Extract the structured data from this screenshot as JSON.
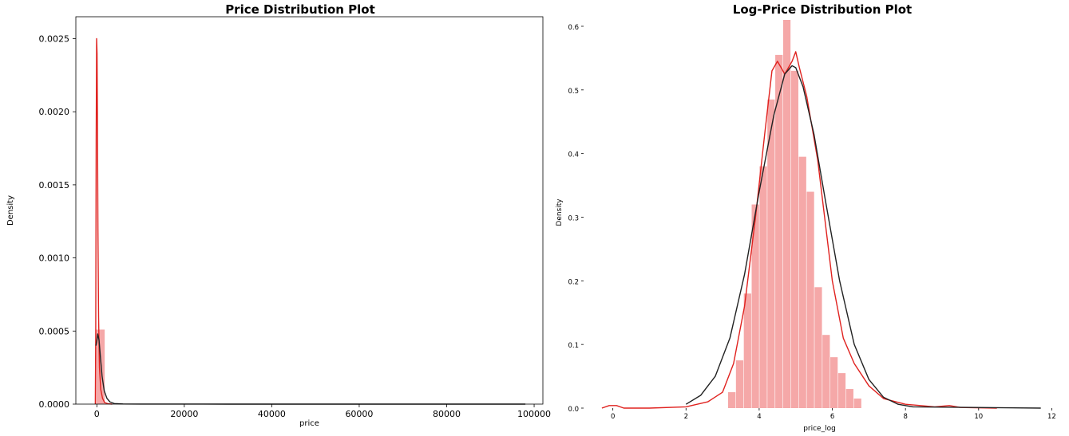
{
  "colors": {
    "bar_fill": "#f4a3a3",
    "kde_line": "#e0221f",
    "fit_line": "#222222",
    "axis": "#000000"
  },
  "chart_data": [
    {
      "type": "histogram",
      "title": "Price Distribution Plot",
      "xlabel": "price",
      "ylabel": "Density",
      "xlim": [
        -4800,
        102000
      ],
      "ylim": [
        0,
        0.00265
      ],
      "xticks": [
        0,
        20000,
        40000,
        60000,
        80000,
        100000
      ],
      "xtick_labels": [
        "0",
        "20000",
        "40000",
        "60000",
        "80000",
        "100000"
      ],
      "yticks": [
        0.0,
        0.0005,
        0.001,
        0.0015,
        0.002,
        0.0025
      ],
      "ytick_labels": [
        "0.0000",
        "0.0005",
        "0.0010",
        "0.0015",
        "0.0020",
        "0.0025"
      ],
      "grid": false,
      "spines": "full box",
      "bins": [
        {
          "x0": -200,
          "x1": 1800,
          "density": 0.00051
        }
      ],
      "kde": {
        "x": [
          -350,
          -250,
          -150,
          -50,
          50,
          150,
          250,
          400,
          600,
          900,
          1300,
          1800,
          2500,
          3500
        ],
        "y": [
          0.0,
          0.0005,
          0.0018,
          0.0025,
          0.0024,
          0.0019,
          0.0012,
          0.0006,
          0.00025,
          0.0001,
          4e-05,
          1e-05,
          3e-06,
          0.0
        ]
      },
      "fit": {
        "x": [
          -200,
          0,
          200,
          500,
          800,
          1200,
          1700,
          2300,
          3000,
          4000,
          6000,
          10000,
          30000,
          98000
        ],
        "y": [
          0.0004,
          0.00043,
          0.00048,
          0.00044,
          0.00033,
          0.00019,
          9e-05,
          4e-05,
          1.5e-05,
          4e-06,
          1e-06,
          3e-07,
          0.0,
          0.0
        ]
      }
    },
    {
      "type": "histogram",
      "title": "Log-Price Distribution Plot",
      "xlabel": "price_log",
      "ylabel": "Density",
      "xlim": [
        -0.8,
        12.1
      ],
      "ylim": [
        0,
        0.615
      ],
      "xticks": [
        0,
        2,
        4,
        6,
        8,
        10,
        12
      ],
      "xtick_labels": [
        "0",
        "2",
        "4",
        "6",
        "8",
        "10",
        "12"
      ],
      "yticks": [
        0.0,
        0.1,
        0.2,
        0.3,
        0.4,
        0.5,
        0.6
      ],
      "ytick_labels": [
        "0.0",
        "0.1",
        "0.2",
        "0.3",
        "0.4",
        "0.5",
        "0.6"
      ],
      "grid": false,
      "spines": "left and bottom",
      "bin_start": 3.15,
      "bin_width": 0.215,
      "bin_densities": [
        0.025,
        0.075,
        0.18,
        0.32,
        0.38,
        0.485,
        0.555,
        0.61,
        0.53,
        0.395,
        0.34,
        0.19,
        0.115,
        0.08,
        0.055,
        0.03,
        0.015
      ],
      "kde": {
        "x": [
          -0.3,
          -0.1,
          0.1,
          0.3,
          1.0,
          2.0,
          2.6,
          3.0,
          3.3,
          3.6,
          3.9,
          4.15,
          4.35,
          4.5,
          4.7,
          4.9,
          5.0,
          5.1,
          5.3,
          5.6,
          6.0,
          6.3,
          6.6,
          7.0,
          7.4,
          8.0,
          8.8,
          9.2,
          9.5,
          10.5
        ],
        "y": [
          0.0,
          0.004,
          0.004,
          0.0,
          0.0,
          0.002,
          0.01,
          0.025,
          0.07,
          0.16,
          0.3,
          0.43,
          0.53,
          0.545,
          0.525,
          0.545,
          0.56,
          0.535,
          0.49,
          0.39,
          0.2,
          0.11,
          0.07,
          0.035,
          0.015,
          0.006,
          0.002,
          0.004,
          0.001,
          0.0
        ]
      },
      "fit": {
        "x": [
          2.0,
          2.4,
          2.8,
          3.2,
          3.6,
          4.0,
          4.4,
          4.7,
          4.9,
          5.0,
          5.2,
          5.5,
          5.8,
          6.2,
          6.6,
          7.0,
          7.4,
          7.8,
          8.2,
          11.7
        ],
        "y": [
          0.006,
          0.02,
          0.05,
          0.11,
          0.21,
          0.34,
          0.46,
          0.525,
          0.538,
          0.535,
          0.505,
          0.43,
          0.33,
          0.2,
          0.1,
          0.045,
          0.017,
          0.006,
          0.002,
          0.0
        ]
      }
    }
  ]
}
